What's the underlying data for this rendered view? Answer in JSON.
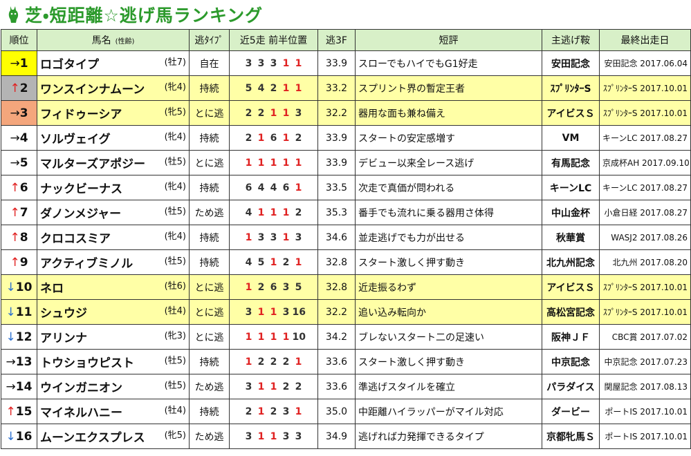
{
  "title": "芝・短距離☆逃げ馬ランキング",
  "table": {
    "header": [
      "順位",
      "馬名",
      "逃ﾀｲﾌﾟ",
      "近5走 前半位置",
      "逃3F",
      "短評",
      "主逃げ鞍",
      "最終出走日"
    ],
    "header_note": "(性齢)",
    "rows": [
      {
        "arrow": "→",
        "rank": 1,
        "name": "ロゴタイプ",
        "sex_age": "(牡7)",
        "type": "自在",
        "positions": [
          3,
          3,
          3,
          1,
          1
        ],
        "f3": "33.9",
        "comment": "スローでもハイでもG1好走",
        "main_race": "安田記念",
        "last_race": "安田記念 2017.06.04",
        "rank_color": "#ffff00"
      },
      {
        "arrow": "↑",
        "rank": 2,
        "name": "ワンスインナムーン",
        "sex_age": "(牝4)",
        "type": "持続",
        "positions": [
          5,
          4,
          2,
          1,
          1
        ],
        "f3": "33.2",
        "comment": "スプリント界の暫定王者",
        "main_race": "ｽﾌﾟﾘﾝﾀｰS",
        "last_race": "ｽﾌﾟﾘﾝﾀｰS 2017.10.01",
        "rank_color": "#b4b4b4",
        "row_color": "#ffffa6"
      },
      {
        "arrow": "→",
        "rank": 3,
        "name": "フィドゥーシア",
        "sex_age": "(牝5)",
        "type": "とに逃",
        "positions": [
          2,
          2,
          1,
          1,
          3
        ],
        "f3": "32.2",
        "comment": "器用な面も兼ね備え",
        "main_race": "アイビスＳ",
        "last_race": "ｽﾌﾟﾘﾝﾀｰS 2017.10.01",
        "rank_color": "#f4a67c",
        "row_color": "#ffffa6"
      },
      {
        "arrow": "→",
        "rank": 4,
        "name": "ソルヴェイグ",
        "sex_age": "(牝4)",
        "type": "持続",
        "positions": [
          2,
          1,
          6,
          1,
          2
        ],
        "f3": "33.9",
        "comment": "スタートの安定感増す",
        "main_race": "VM",
        "last_race": "キーンLC 2017.08.27"
      },
      {
        "arrow": "→",
        "rank": 5,
        "name": "マルターズアポジー",
        "sex_age": "(牡5)",
        "type": "とに逃",
        "positions": [
          1,
          1,
          1,
          1,
          1
        ],
        "f3": "33.9",
        "comment": "デビュー以来全レース逃げ",
        "main_race": "有馬記念",
        "last_race": "京成杯AH 2017.09.10"
      },
      {
        "arrow": "↑",
        "rank": 6,
        "name": "ナックビーナス",
        "sex_age": "(牝4)",
        "type": "持続",
        "positions": [
          6,
          4,
          4,
          6,
          1
        ],
        "f3": "33.5",
        "comment": "次走で真価が問われる",
        "main_race": "キーンLC",
        "last_race": "キーンLC 2017.08.27"
      },
      {
        "arrow": "↑",
        "rank": 7,
        "name": "ダノンメジャー",
        "sex_age": "(牡5)",
        "type": "ため逃",
        "positions": [
          4,
          1,
          1,
          1,
          2
        ],
        "f3": "35.3",
        "comment": "番手でも流れに乗る器用さ体得",
        "main_race": "中山金杯",
        "last_race": "小倉日経 2017.08.27"
      },
      {
        "arrow": "↑",
        "rank": 8,
        "name": "クロコスミア",
        "sex_age": "(牝4)",
        "type": "持続",
        "positions": [
          1,
          3,
          3,
          1,
          3
        ],
        "f3": "34.6",
        "comment": "並走逃げでも力が出せる",
        "main_race": "秋華賞",
        "last_race": "WASJ2 2017.08.26"
      },
      {
        "arrow": "↑",
        "rank": 9,
        "name": "アクティブミノル",
        "sex_age": "(牡5)",
        "type": "持続",
        "positions": [
          4,
          5,
          1,
          2,
          1
        ],
        "f3": "32.8",
        "comment": "スタート激しく押す動き",
        "main_race": "北九州記念",
        "last_race": "北九州 2017.08.20"
      },
      {
        "arrow": "↓",
        "rank": 10,
        "name": "ネロ",
        "sex_age": "(牡6)",
        "type": "とに逃",
        "positions": [
          1,
          2,
          6,
          3,
          5
        ],
        "f3": "32.8",
        "comment": "近走振るわず",
        "main_race": "アイビスＳ",
        "last_race": "ｽﾌﾟﾘﾝﾀｰS 2017.10.01",
        "row_color": "#ffffa6"
      },
      {
        "arrow": "↓",
        "rank": 11,
        "name": "シュウジ",
        "sex_age": "(牡4)",
        "type": "とに逃",
        "positions": [
          3,
          1,
          1,
          3,
          16
        ],
        "f3": "32.2",
        "comment": "追い込み転向か",
        "main_race": "高松宮記念",
        "last_race": "ｽﾌﾟﾘﾝﾀｰS 2017.10.01",
        "row_color": "#ffffa6"
      },
      {
        "arrow": "↓",
        "rank": 12,
        "name": "アリンナ",
        "sex_age": "(牝3)",
        "type": "とに逃",
        "positions": [
          1,
          1,
          1,
          1,
          10
        ],
        "f3": "34.2",
        "comment": "ブレないスタート二の足速い",
        "main_race": "阪神ＪＦ",
        "last_race": "CBC賞 2017.07.02"
      },
      {
        "arrow": "→",
        "rank": 13,
        "name": "トウショウピスト",
        "sex_age": "(牡5)",
        "type": "持続",
        "positions": [
          1,
          2,
          2,
          2,
          1
        ],
        "f3": "33.6",
        "comment": "スタート激しく押す動き",
        "main_race": "中京記念",
        "last_race": "中京記念 2017.07.23"
      },
      {
        "arrow": "→",
        "rank": 14,
        "name": "ウインガニオン",
        "sex_age": "(牡5)",
        "type": "ため逃",
        "positions": [
          3,
          1,
          1,
          2,
          2
        ],
        "f3": "33.6",
        "comment": "準逃げスタイルを確立",
        "main_race": "パラダイス",
        "last_race": "関屋記念 2017.08.13"
      },
      {
        "arrow": "↑",
        "rank": 15,
        "name": "マイネルハニー",
        "sex_age": "(牡4)",
        "type": "持続",
        "positions": [
          2,
          1,
          2,
          3,
          1
        ],
        "f3": "35.0",
        "comment": "中距離ハイラッパーがマイル対応",
        "main_race": "ダービー",
        "last_race": "ポートIS 2017.10.01"
      },
      {
        "arrow": "↓",
        "rank": 16,
        "name": "ムーンエクスプレス",
        "sex_age": "(牝5)",
        "type": "ため逃",
        "positions": [
          3,
          1,
          1,
          3,
          3
        ],
        "f3": "34.9",
        "comment": "逃げれば力発揮できるタイプ",
        "main_race": "京都牝馬Ｓ",
        "last_race": "ポートIS 2017.10.01"
      }
    ]
  }
}
